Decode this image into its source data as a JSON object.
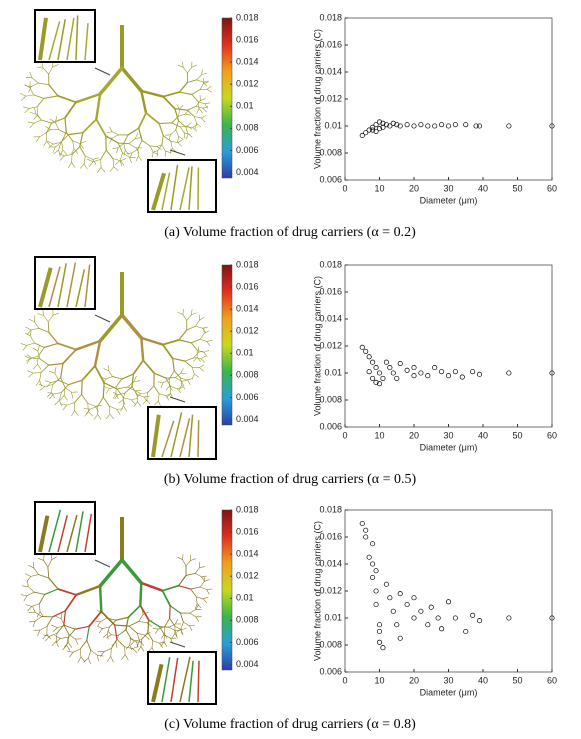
{
  "chart_data": [
    {
      "type": "scatter",
      "caption": "(a) Volume fraction of drug carriers (α = 0.2)",
      "xlabel": "Diameter (μm)",
      "ylabel": "Volume fraction of drug carriers (C)",
      "xlim": [
        0,
        60
      ],
      "ylim": [
        0.006,
        0.018
      ],
      "xticks": [
        0,
        10,
        20,
        30,
        40,
        50,
        60
      ],
      "yticks": [
        0.006,
        0.008,
        0.01,
        0.012,
        0.014,
        0.016,
        0.018
      ],
      "color": "#000000",
      "colorbar": {
        "lim": [
          0.0035,
          0.018
        ],
        "ticks": [
          0.004,
          0.006,
          0.008,
          0.01,
          0.012,
          0.014,
          0.016,
          0.018
        ]
      },
      "x": [
        5,
        6,
        7,
        8,
        8,
        9,
        9,
        10,
        10,
        11,
        11,
        12,
        13,
        14,
        15,
        16,
        18,
        20,
        22,
        24,
        26,
        28,
        30,
        32,
        35,
        38,
        39,
        47.5,
        60
      ],
      "values": [
        0.0093,
        0.0095,
        0.0097,
        0.0099,
        0.0097,
        0.0101,
        0.0096,
        0.0103,
        0.0098,
        0.0102,
        0.0099,
        0.0101,
        0.01,
        0.0102,
        0.0101,
        0.01,
        0.0101,
        0.01,
        0.0101,
        0.01,
        0.01,
        0.0101,
        0.01,
        0.0101,
        0.0101,
        0.01,
        0.01,
        0.01,
        0.01
      ]
    },
    {
      "type": "scatter",
      "caption": "(b) Volume fraction of drug carriers (α = 0.5)",
      "xlabel": "Diameter (μm)",
      "ylabel": "Volume fraction of drug carriers (C)",
      "xlim": [
        0,
        60
      ],
      "ylim": [
        0.006,
        0.018
      ],
      "xticks": [
        0,
        10,
        20,
        30,
        40,
        50,
        60
      ],
      "yticks": [
        0.006,
        0.008,
        0.01,
        0.012,
        0.014,
        0.016,
        0.018
      ],
      "color": "#000000",
      "colorbar": {
        "lim": [
          0.0035,
          0.018
        ],
        "ticks": [
          0.004,
          0.006,
          0.008,
          0.01,
          0.012,
          0.014,
          0.016,
          0.018
        ]
      },
      "x": [
        5,
        6,
        7,
        7,
        8,
        8,
        9,
        9,
        10,
        10,
        11,
        12,
        13,
        14,
        15,
        16,
        18,
        20,
        20,
        22,
        24,
        26,
        28,
        30,
        32,
        34,
        37,
        39,
        47.5,
        60
      ],
      "values": [
        0.0119,
        0.0116,
        0.0112,
        0.0101,
        0.0108,
        0.0096,
        0.0104,
        0.0093,
        0.01,
        0.0092,
        0.0096,
        0.0108,
        0.0104,
        0.01,
        0.0096,
        0.0107,
        0.0102,
        0.0098,
        0.0104,
        0.01,
        0.0098,
        0.0104,
        0.0101,
        0.0098,
        0.0101,
        0.0097,
        0.0101,
        0.0099,
        0.01,
        0.01
      ]
    },
    {
      "type": "scatter",
      "caption": "(c) Volume fraction of drug carriers (α = 0.8)",
      "xlabel": "Diameter (μm)",
      "ylabel": "Volume fraction of drug carriers (C)",
      "xlim": [
        0,
        60
      ],
      "ylim": [
        0.006,
        0.018
      ],
      "xticks": [
        0,
        10,
        20,
        30,
        40,
        50,
        60
      ],
      "yticks": [
        0.006,
        0.008,
        0.01,
        0.012,
        0.014,
        0.016,
        0.018
      ],
      "color": "#000000",
      "colorbar": {
        "lim": [
          0.0035,
          0.018
        ],
        "ticks": [
          0.004,
          0.006,
          0.008,
          0.01,
          0.012,
          0.014,
          0.016,
          0.018
        ]
      },
      "x": [
        5,
        6,
        6,
        8,
        7,
        8,
        9,
        8,
        9,
        9,
        10,
        10,
        10,
        11,
        12,
        13,
        14,
        15,
        16,
        16,
        18,
        20,
        20,
        22,
        24,
        25,
        27,
        28,
        30,
        32,
        35,
        37,
        39,
        47.5,
        60
      ],
      "values": [
        0.017,
        0.0165,
        0.016,
        0.0155,
        0.0145,
        0.014,
        0.0135,
        0.013,
        0.012,
        0.011,
        0.0095,
        0.009,
        0.0082,
        0.0078,
        0.0125,
        0.0115,
        0.0105,
        0.0095,
        0.0085,
        0.0118,
        0.011,
        0.01,
        0.0115,
        0.0105,
        0.0095,
        0.0108,
        0.01,
        0.0092,
        0.0112,
        0.01,
        0.009,
        0.0102,
        0.0098,
        0.01,
        0.01
      ]
    }
  ],
  "colormap": [
    "#2b3fa8",
    "#2a9fd6",
    "#3cb44b",
    "#c8d820",
    "#f0a020",
    "#e03020",
    "#7a1515"
  ]
}
